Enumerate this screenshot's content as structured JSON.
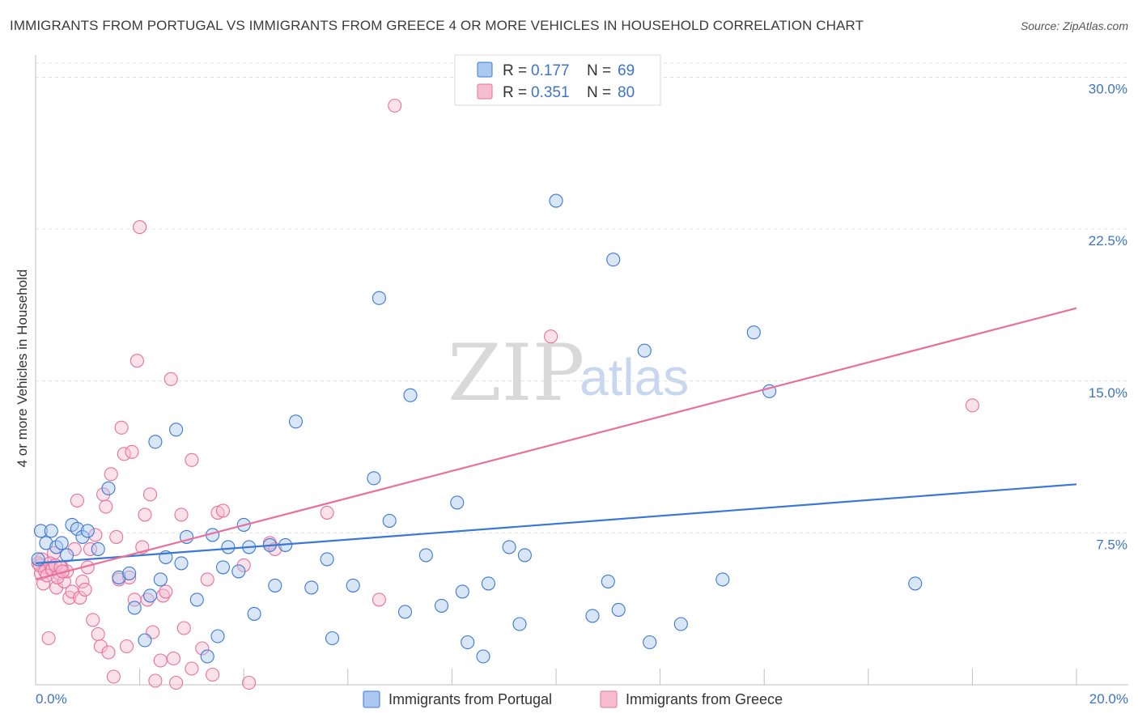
{
  "header": {
    "title": "IMMIGRANTS FROM PORTUGAL VS IMMIGRANTS FROM GREECE 4 OR MORE VEHICLES IN HOUSEHOLD CORRELATION CHART",
    "source": "Source: ZipAtlas.com"
  },
  "watermark": {
    "zip": "ZIP",
    "atlas": "atlas"
  },
  "legend": {
    "r_label": "R =",
    "n_label": "N =",
    "portugal": {
      "r": "0.177",
      "n": "69"
    },
    "greece": {
      "r": "0.351",
      "n": "80"
    }
  },
  "chart_data": {
    "type": "scatter",
    "title": "IMMIGRANTS FROM PORTUGAL VS IMMIGRANTS FROM GREECE 4 OR MORE VEHICLES IN HOUSEHOLD CORRELATION CHART",
    "xlabel": "",
    "ylabel": "4 or more Vehicles in Household",
    "xlim": [
      0,
      20
    ],
    "ylim": [
      0,
      30.7
    ],
    "x_tick_labels": [
      "0.0%",
      "20.0%"
    ],
    "y_ticks": [
      7.5,
      15.0,
      22.5,
      30.0
    ],
    "y_tick_labels": [
      "7.5%",
      "15.0%",
      "22.5%",
      "30.0%"
    ],
    "colors": {
      "portugal": "#3a78d4",
      "greece": "#e8709a",
      "portugal_fill": "#aac8f0",
      "greece_fill": "#f6bcd0"
    },
    "series": [
      {
        "name": "Immigrants from Portugal",
        "key": "portugal",
        "r": 0.177,
        "n": 69,
        "trend": {
          "x": [
            0,
            20
          ],
          "y": [
            6.0,
            9.9
          ]
        },
        "points": [
          [
            0.1,
            7.6
          ],
          [
            0.2,
            7.0
          ],
          [
            0.3,
            7.6
          ],
          [
            0.4,
            6.8
          ],
          [
            0.5,
            7.0
          ],
          [
            0.6,
            6.4
          ],
          [
            0.7,
            7.9
          ],
          [
            0.8,
            7.7
          ],
          [
            0.9,
            7.3
          ],
          [
            1.0,
            7.6
          ],
          [
            1.2,
            6.7
          ],
          [
            1.4,
            9.7
          ],
          [
            1.6,
            5.3
          ],
          [
            1.8,
            5.5
          ],
          [
            1.9,
            3.8
          ],
          [
            2.1,
            2.2
          ],
          [
            2.2,
            4.4
          ],
          [
            2.3,
            12.0
          ],
          [
            2.4,
            5.2
          ],
          [
            2.5,
            6.3
          ],
          [
            2.7,
            12.6
          ],
          [
            2.8,
            6.0
          ],
          [
            2.9,
            7.3
          ],
          [
            3.1,
            4.2
          ],
          [
            3.3,
            1.4
          ],
          [
            3.4,
            7.4
          ],
          [
            3.5,
            2.4
          ],
          [
            3.6,
            5.8
          ],
          [
            3.7,
            6.8
          ],
          [
            3.9,
            5.6
          ],
          [
            4.0,
            7.9
          ],
          [
            4.1,
            6.8
          ],
          [
            4.2,
            3.5
          ],
          [
            4.5,
            6.9
          ],
          [
            4.6,
            4.9
          ],
          [
            4.8,
            6.9
          ],
          [
            5.0,
            13.0
          ],
          [
            5.3,
            4.8
          ],
          [
            5.6,
            6.2
          ],
          [
            5.7,
            2.3
          ],
          [
            6.1,
            4.9
          ],
          [
            6.5,
            10.2
          ],
          [
            6.6,
            19.1
          ],
          [
            6.8,
            8.1
          ],
          [
            7.1,
            3.6
          ],
          [
            7.2,
            14.3
          ],
          [
            7.5,
            6.4
          ],
          [
            7.8,
            3.9
          ],
          [
            8.1,
            9.0
          ],
          [
            8.2,
            4.6
          ],
          [
            8.3,
            2.1
          ],
          [
            8.6,
            1.4
          ],
          [
            8.7,
            5.0
          ],
          [
            9.1,
            6.8
          ],
          [
            9.3,
            3.0
          ],
          [
            9.4,
            6.4
          ],
          [
            10.0,
            23.9
          ],
          [
            10.7,
            3.4
          ],
          [
            11.0,
            5.1
          ],
          [
            11.1,
            21.0
          ],
          [
            11.2,
            3.7
          ],
          [
            11.7,
            16.5
          ],
          [
            11.8,
            2.1
          ],
          [
            12.4,
            3.0
          ],
          [
            13.2,
            5.2
          ],
          [
            13.8,
            17.4
          ],
          [
            14.1,
            14.5
          ],
          [
            16.9,
            5.0
          ],
          [
            0.05,
            6.2
          ]
        ]
      },
      {
        "name": "Immigrants from Greece",
        "key": "greece",
        "r": 0.351,
        "n": 80,
        "trend": {
          "x": [
            0,
            20
          ],
          "y": [
            5.2,
            18.6
          ]
        },
        "points": [
          [
            0.05,
            6.0
          ],
          [
            0.1,
            5.5
          ],
          [
            0.15,
            5.0
          ],
          [
            0.2,
            5.8
          ],
          [
            0.25,
            2.3
          ],
          [
            0.3,
            5.7
          ],
          [
            0.35,
            6.5
          ],
          [
            0.4,
            4.8
          ],
          [
            0.45,
            5.5
          ],
          [
            0.5,
            5.8
          ],
          [
            0.55,
            5.1
          ],
          [
            0.6,
            5.6
          ],
          [
            0.65,
            4.3
          ],
          [
            0.7,
            4.6
          ],
          [
            0.75,
            6.7
          ],
          [
            0.8,
            9.1
          ],
          [
            0.85,
            4.3
          ],
          [
            0.9,
            5.1
          ],
          [
            0.95,
            4.7
          ],
          [
            1.0,
            5.8
          ],
          [
            1.05,
            6.7
          ],
          [
            1.1,
            3.2
          ],
          [
            1.15,
            7.4
          ],
          [
            1.2,
            2.5
          ],
          [
            1.25,
            1.9
          ],
          [
            1.3,
            9.4
          ],
          [
            1.35,
            8.8
          ],
          [
            1.4,
            1.6
          ],
          [
            1.45,
            10.4
          ],
          [
            1.5,
            0.4
          ],
          [
            1.55,
            7.3
          ],
          [
            1.6,
            5.2
          ],
          [
            1.65,
            12.7
          ],
          [
            1.7,
            11.4
          ],
          [
            1.75,
            1.9
          ],
          [
            1.8,
            5.3
          ],
          [
            1.85,
            11.5
          ],
          [
            1.9,
            4.2
          ],
          [
            1.95,
            16.0
          ],
          [
            2.0,
            22.6
          ],
          [
            2.05,
            6.8
          ],
          [
            2.1,
            8.4
          ],
          [
            2.15,
            4.2
          ],
          [
            2.2,
            9.4
          ],
          [
            2.25,
            2.6
          ],
          [
            2.3,
            0.2
          ],
          [
            2.4,
            1.2
          ],
          [
            2.45,
            4.4
          ],
          [
            2.5,
            4.6
          ],
          [
            2.6,
            15.1
          ],
          [
            2.65,
            1.3
          ],
          [
            2.7,
            0.1
          ],
          [
            2.8,
            8.4
          ],
          [
            2.85,
            2.8
          ],
          [
            3.0,
            0.8
          ],
          [
            3.0,
            11.1
          ],
          [
            3.2,
            1.8
          ],
          [
            3.3,
            5.2
          ],
          [
            3.4,
            0.5
          ],
          [
            3.5,
            8.5
          ],
          [
            3.6,
            8.6
          ],
          [
            4.0,
            5.9
          ],
          [
            4.1,
            0.1
          ],
          [
            4.5,
            7.0
          ],
          [
            4.6,
            6.7
          ],
          [
            5.6,
            8.5
          ],
          [
            6.6,
            4.2
          ],
          [
            6.9,
            28.6
          ],
          [
            9.9,
            17.2
          ],
          [
            18.0,
            13.8
          ],
          [
            0.08,
            5.9
          ],
          [
            0.12,
            6.2
          ],
          [
            0.18,
            5.6
          ],
          [
            0.22,
            5.4
          ],
          [
            0.28,
            6.0
          ],
          [
            0.32,
            5.7
          ],
          [
            0.38,
            5.9
          ],
          [
            0.42,
            5.3
          ],
          [
            0.48,
            5.8
          ],
          [
            0.52,
            5.6
          ]
        ]
      }
    ],
    "legend_position": "top-center",
    "grid": true
  }
}
